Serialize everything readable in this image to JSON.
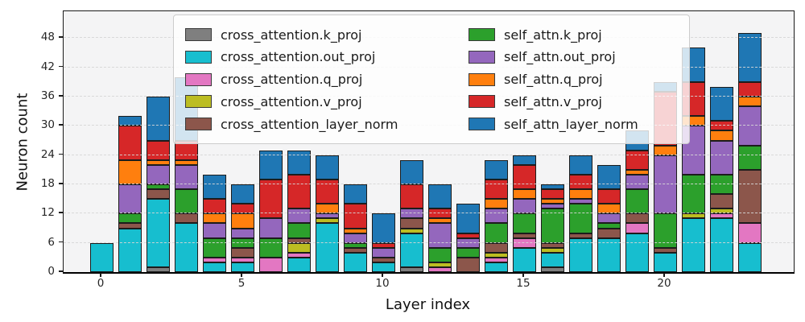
{
  "chart_data": {
    "type": "bar",
    "stacked": true,
    "title": "",
    "xlabel": "Layer index",
    "ylabel": "Neuron count",
    "categories": [
      0,
      1,
      2,
      3,
      4,
      5,
      6,
      7,
      8,
      9,
      10,
      11,
      12,
      13,
      14,
      15,
      16,
      17,
      18,
      19,
      20,
      21,
      22,
      23
    ],
    "x_tick_labels": [
      "0",
      "5",
      "10",
      "15",
      "20"
    ],
    "x_tick_positions": [
      0,
      5,
      10,
      15,
      20
    ],
    "y_tick_labels": [
      "0",
      "6",
      "12",
      "18",
      "24",
      "30",
      "36",
      "42",
      "48"
    ],
    "y_tick_values": [
      0,
      6,
      12,
      18,
      24,
      30,
      36,
      42,
      48
    ],
    "ylim": [
      0,
      53.5
    ],
    "grid": "horizontal-dashed",
    "legend_position": "upper-center-2-columns",
    "series": [
      {
        "name": "cross_attention.k_proj",
        "color": "#7f7f7f",
        "values": [
          0,
          0,
          1,
          0,
          0,
          0,
          0,
          0,
          0,
          0,
          0,
          1,
          0,
          0,
          0,
          0,
          1,
          0,
          0,
          0,
          0,
          0,
          0,
          0
        ]
      },
      {
        "name": "cross_attention.out_proj",
        "color": "#17becf",
        "values": [
          6,
          9,
          14,
          10,
          2,
          2,
          0,
          3,
          10,
          4,
          2,
          7,
          0,
          0,
          2,
          5,
          3,
          7,
          7,
          8,
          4,
          11,
          11,
          6
        ]
      },
      {
        "name": "cross_attention.q_proj",
        "color": "#e377c2",
        "values": [
          0,
          0,
          0,
          0,
          1,
          1,
          3,
          1,
          0,
          0,
          0,
          0,
          1,
          0,
          1,
          2,
          0,
          0,
          0,
          2,
          0,
          0,
          1,
          4
        ]
      },
      {
        "name": "cross_attention.v_proj",
        "color": "#bcbd22",
        "values": [
          0,
          0,
          0,
          0,
          0,
          0,
          0,
          2,
          1,
          0,
          0,
          1,
          1,
          0,
          1,
          0,
          1,
          0,
          0,
          0,
          0,
          1,
          1,
          0
        ]
      },
      {
        "name": "cross_attention_layer_norm",
        "color": "#8c564b",
        "values": [
          0,
          1,
          2,
          2,
          0,
          2,
          0,
          1,
          0,
          1,
          1,
          2,
          0,
          3,
          2,
          1,
          1,
          1,
          2,
          2,
          1,
          0,
          3,
          11
        ]
      },
      {
        "name": "self_attn.k_proj",
        "color": "#2ca02c",
        "values": [
          0,
          2,
          1,
          5,
          4,
          2,
          4,
          3,
          0,
          1,
          0,
          0,
          3,
          2,
          4,
          4,
          7,
          6,
          1,
          5,
          7,
          8,
          4,
          5
        ]
      },
      {
        "name": "self_attn.out_proj",
        "color": "#9467bd",
        "values": [
          0,
          6,
          4,
          5,
          3,
          2,
          4,
          3,
          1,
          2,
          2,
          2,
          5,
          2,
          3,
          3,
          1,
          1,
          2,
          3,
          12,
          10,
          7,
          8
        ]
      },
      {
        "name": "self_attn.q_proj",
        "color": "#ff7f0e",
        "values": [
          0,
          5,
          1,
          1,
          2,
          3,
          0,
          0,
          2,
          1,
          0,
          0,
          1,
          0,
          2,
          2,
          1,
          2,
          2,
          1,
          2,
          2,
          2,
          2
        ]
      },
      {
        "name": "self_attn.v_proj",
        "color": "#d62728",
        "values": [
          0,
          7,
          4,
          4,
          3,
          2,
          8,
          7,
          5,
          5,
          1,
          5,
          2,
          1,
          4,
          5,
          2,
          3,
          3,
          4,
          11,
          7,
          2,
          3
        ]
      },
      {
        "name": "self_attn_layer_norm",
        "color": "#1f77b4",
        "values": [
          0,
          2,
          9,
          13,
          5,
          4,
          6,
          5,
          5,
          4,
          6,
          5,
          5,
          6,
          4,
          2,
          1,
          4,
          5,
          4,
          2,
          7,
          7,
          10
        ]
      }
    ],
    "legend_columns": [
      [
        "cross_attention.k_proj",
        "cross_attention.out_proj",
        "cross_attention.q_proj",
        "cross_attention.v_proj",
        "cross_attention_layer_norm"
      ],
      [
        "self_attn.k_proj",
        "self_attn.out_proj",
        "self_attn.q_proj",
        "self_attn.v_proj",
        "self_attn_layer_norm"
      ]
    ]
  },
  "layout_hints": {
    "plot_bg": "#f4f4f5",
    "bar_edge_color": "#1c1c1c",
    "grid_color": "#d6d6d6"
  }
}
